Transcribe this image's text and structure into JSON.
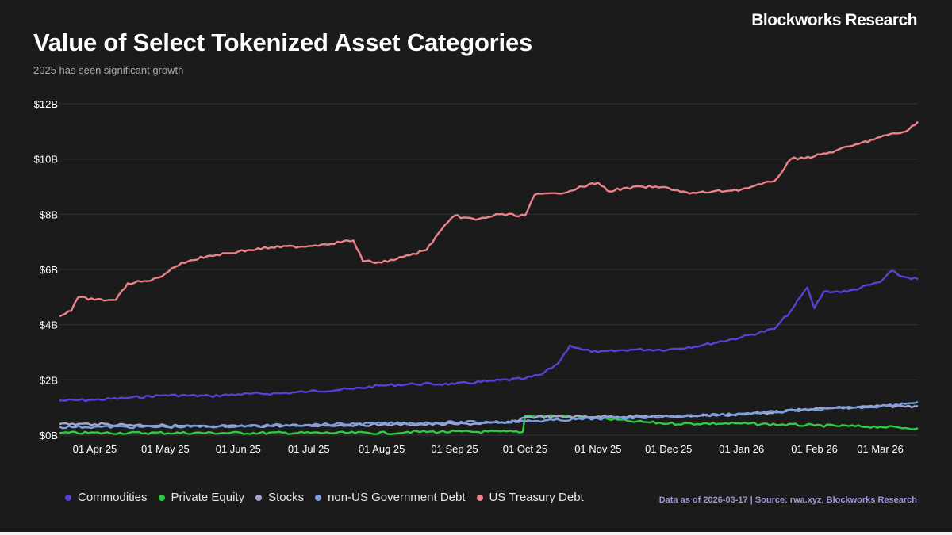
{
  "brand": "Blockworks Research",
  "title": "Value of Select Tokenized Asset Categories",
  "subtitle": "2025 has seen significant growth",
  "source": "Data as of 2026-03-17 | Source: rwa.xyz, Blockworks Research",
  "chart_data": {
    "type": "line",
    "title": "Value of Select Tokenized Asset Categories",
    "subtitle": "2025 has seen significant growth",
    "xlabel": "",
    "ylabel": "",
    "ylim": [
      0,
      12
    ],
    "y_unit": "B",
    "y_ticks": [
      0,
      2,
      4,
      6,
      8,
      10,
      12
    ],
    "y_tick_labels": [
      "$0B",
      "$2B",
      "$4B",
      "$6B",
      "$8B",
      "$10B",
      "$12B"
    ],
    "x_range": [
      "2025-03-17",
      "2026-03-17"
    ],
    "x_ticks": [
      "2025-04-01",
      "2025-05-01",
      "2025-06-01",
      "2025-07-01",
      "2025-08-01",
      "2025-09-01",
      "2025-10-01",
      "2025-11-01",
      "2025-12-01",
      "2026-01-01",
      "2026-02-01",
      "2026-03-01"
    ],
    "x_tick_labels": [
      "01 Apr 25",
      "01 May 25",
      "01 Jun 25",
      "01 Jul 25",
      "01 Aug 25",
      "01 Sep 25",
      "01 Oct 25",
      "01 Nov 25",
      "01 Dec 25",
      "01 Jan 26",
      "01 Feb 26",
      "01 Mar 26"
    ],
    "grid": "horizontal",
    "legend_position": "bottom-left",
    "series": [
      {
        "name": "Commodities",
        "color": "#5b3fd6",
        "points": [
          [
            "2025-03-17",
            1.25
          ],
          [
            "2025-04-01",
            1.28
          ],
          [
            "2025-04-15",
            1.35
          ],
          [
            "2025-05-01",
            1.45
          ],
          [
            "2025-05-20",
            1.42
          ],
          [
            "2025-06-01",
            1.48
          ],
          [
            "2025-06-20",
            1.52
          ],
          [
            "2025-07-01",
            1.58
          ],
          [
            "2025-07-20",
            1.68
          ],
          [
            "2025-08-01",
            1.8
          ],
          [
            "2025-08-15",
            1.85
          ],
          [
            "2025-09-01",
            1.85
          ],
          [
            "2025-09-15",
            1.95
          ],
          [
            "2025-10-01",
            2.05
          ],
          [
            "2025-10-08",
            2.2
          ],
          [
            "2025-10-15",
            2.6
          ],
          [
            "2025-10-20",
            3.25
          ],
          [
            "2025-10-25",
            3.1
          ],
          [
            "2025-11-01",
            3.0
          ],
          [
            "2025-11-15",
            3.1
          ],
          [
            "2025-12-01",
            3.1
          ],
          [
            "2025-12-15",
            3.25
          ],
          [
            "2026-01-01",
            3.55
          ],
          [
            "2026-01-15",
            3.85
          ],
          [
            "2026-01-22",
            4.5
          ],
          [
            "2026-01-29",
            5.35
          ],
          [
            "2026-02-01",
            4.6
          ],
          [
            "2026-02-05",
            5.2
          ],
          [
            "2026-02-15",
            5.2
          ],
          [
            "2026-03-01",
            5.55
          ],
          [
            "2026-03-06",
            5.95
          ],
          [
            "2026-03-10",
            5.75
          ],
          [
            "2026-03-17",
            5.65
          ]
        ]
      },
      {
        "name": "Private Equity",
        "color": "#2ecc40",
        "points": [
          [
            "2025-03-17",
            0.08
          ],
          [
            "2025-08-10",
            0.08
          ],
          [
            "2025-08-12",
            0.12
          ],
          [
            "2025-09-30",
            0.12
          ],
          [
            "2025-10-01",
            0.7
          ],
          [
            "2025-10-15",
            0.7
          ],
          [
            "2025-11-01",
            0.62
          ],
          [
            "2025-11-15",
            0.5
          ],
          [
            "2025-12-01",
            0.42
          ],
          [
            "2026-01-01",
            0.42
          ],
          [
            "2026-02-01",
            0.35
          ],
          [
            "2026-03-01",
            0.3
          ],
          [
            "2026-03-17",
            0.25
          ]
        ]
      },
      {
        "name": "Stocks",
        "color": "#a9a3cf",
        "points": [
          [
            "2025-03-17",
            0.4
          ],
          [
            "2025-04-01",
            0.4
          ],
          [
            "2025-05-01",
            0.35
          ],
          [
            "2025-05-20",
            0.3
          ],
          [
            "2025-06-01",
            0.32
          ],
          [
            "2025-07-01",
            0.35
          ],
          [
            "2025-08-01",
            0.38
          ],
          [
            "2025-09-01",
            0.4
          ],
          [
            "2025-09-25",
            0.45
          ],
          [
            "2025-10-01",
            0.65
          ],
          [
            "2025-11-01",
            0.68
          ],
          [
            "2025-12-01",
            0.68
          ],
          [
            "2026-01-01",
            0.75
          ],
          [
            "2026-02-01",
            0.95
          ],
          [
            "2026-03-01",
            1.05
          ],
          [
            "2026-03-17",
            1.05
          ]
        ]
      },
      {
        "name": "non-US Government Debt",
        "color": "#7b9fe0",
        "points": [
          [
            "2025-03-17",
            0.3
          ],
          [
            "2025-04-01",
            0.3
          ],
          [
            "2025-05-01",
            0.3
          ],
          [
            "2025-06-01",
            0.33
          ],
          [
            "2025-07-01",
            0.38
          ],
          [
            "2025-08-01",
            0.42
          ],
          [
            "2025-09-01",
            0.46
          ],
          [
            "2025-10-01",
            0.5
          ],
          [
            "2025-11-01",
            0.6
          ],
          [
            "2025-12-01",
            0.68
          ],
          [
            "2026-01-01",
            0.78
          ],
          [
            "2026-02-01",
            0.92
          ],
          [
            "2026-03-01",
            1.05
          ],
          [
            "2026-03-17",
            1.2
          ]
        ]
      },
      {
        "name": "US Treasury Debt",
        "color": "#ee8287",
        "points": [
          [
            "2025-03-17",
            4.3
          ],
          [
            "2025-03-22",
            4.5
          ],
          [
            "2025-03-25",
            5.0
          ],
          [
            "2025-04-01",
            4.9
          ],
          [
            "2025-04-10",
            4.9
          ],
          [
            "2025-04-15",
            5.5
          ],
          [
            "2025-04-25",
            5.6
          ],
          [
            "2025-05-01",
            5.85
          ],
          [
            "2025-05-08",
            6.25
          ],
          [
            "2025-05-20",
            6.5
          ],
          [
            "2025-06-01",
            6.65
          ],
          [
            "2025-06-15",
            6.8
          ],
          [
            "2025-07-01",
            6.85
          ],
          [
            "2025-07-20",
            7.05
          ],
          [
            "2025-07-24",
            6.3
          ],
          [
            "2025-08-01",
            6.25
          ],
          [
            "2025-08-10",
            6.45
          ],
          [
            "2025-08-20",
            6.7
          ],
          [
            "2025-08-25",
            7.3
          ],
          [
            "2025-09-01",
            7.95
          ],
          [
            "2025-09-10",
            7.8
          ],
          [
            "2025-09-20",
            8.0
          ],
          [
            "2025-10-01",
            7.95
          ],
          [
            "2025-10-05",
            8.7
          ],
          [
            "2025-10-15",
            8.75
          ],
          [
            "2025-11-01",
            9.15
          ],
          [
            "2025-11-05",
            8.85
          ],
          [
            "2025-11-20",
            9.0
          ],
          [
            "2025-12-01",
            8.95
          ],
          [
            "2025-12-10",
            8.75
          ],
          [
            "2026-01-01",
            8.9
          ],
          [
            "2026-01-15",
            9.2
          ],
          [
            "2026-01-22",
            10.0
          ],
          [
            "2026-02-01",
            10.1
          ],
          [
            "2026-02-10",
            10.3
          ],
          [
            "2026-02-20",
            10.55
          ],
          [
            "2026-03-01",
            10.8
          ],
          [
            "2026-03-12",
            11.0
          ],
          [
            "2026-03-17",
            11.35
          ]
        ]
      }
    ]
  }
}
